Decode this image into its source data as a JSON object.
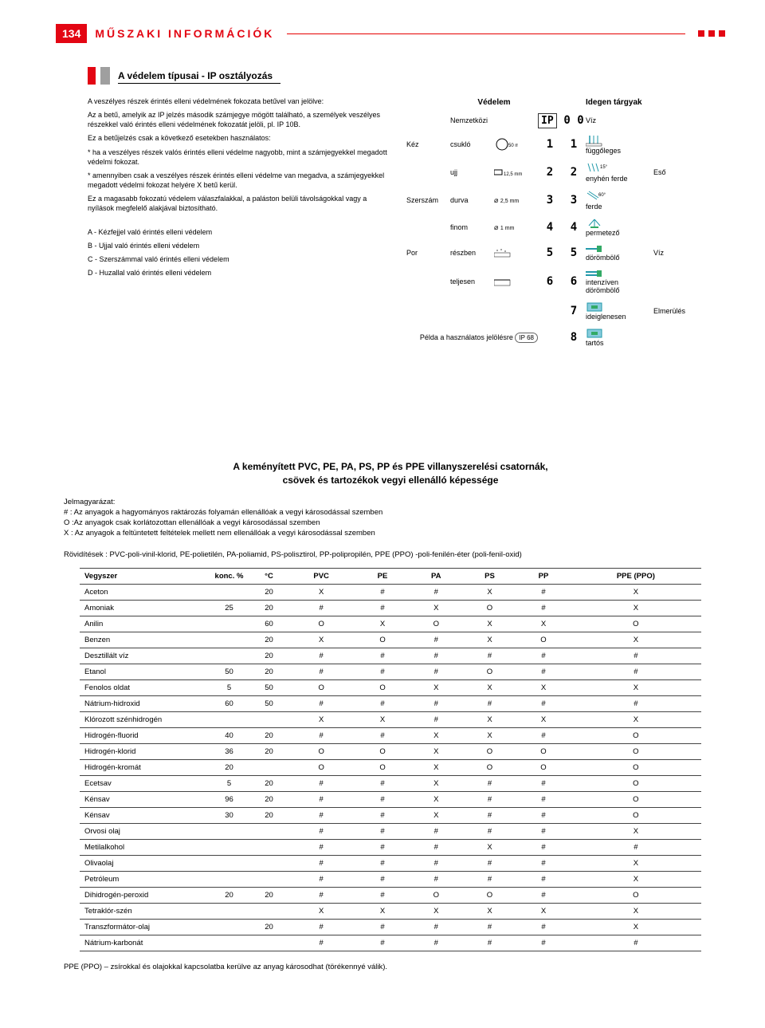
{
  "page_number": "134",
  "top_title": "MŰSZAKI INFORMÁCIÓK",
  "section_a": {
    "title": "A védelem típusai - IP osztályozás",
    "p1": "A veszélyes részek érintés elleni védelmének fokozata betűvel van jelölve:",
    "p2": "Az a betű, amelyik az IP jelzés második számjegye mögött található, a személyek veszélyes részekkel való érintés elleni védelmének fokozatát jelöli, pl. IP 10B.",
    "p3": "Ez a betűjelzés csak a következő esetekben használatos:",
    "p4": "* ha a veszélyes részek valós érintés elleni védelme nagyobb, mint a számjegyekkel megadott védelmi fokozat.",
    "p5": "* amennyiben csak a veszélyes részek érintés elleni védelme van megadva, a számjegyekkel megadott védelmi fokozat helyére X betű kerül.",
    "p6": "Ez a magasabb fokozatú védelem válaszfalakkal, a paláston belüli távolságokkal vagy a nyílások megfelelő alakjával biztosítható.",
    "la": "A - Kézfejjel való érintés elleni védelem",
    "lb": "B - Ujjal való érintés elleni védelem",
    "lc": "C - Szerszámmal való érintés elleni védelem",
    "ld": "D - Huzallal való érintés elleni védelem",
    "hdr_vedelem": "Védelem",
    "hdr_idegen": "Idegen tárgyak",
    "nemzetkozi": "Nemzetközi",
    "viz": "Víz",
    "kez": "Kéz",
    "szerszam": "Szerszám",
    "por": "Por",
    "csuklo": "csukló",
    "ujj": "ujj",
    "durva": "durva",
    "finom": "finom",
    "reszben": "részben",
    "teljesen": "teljesen",
    "ip_label": "IP",
    "d50": "50 mm",
    "d125": "12,5 mm",
    "d25": "2,5 mm",
    "d1": "1 mm",
    "ang15": "15°",
    "ang60": "60°",
    "fuggoleges": "függőleges",
    "enyhen": "enyhén ferde",
    "ferde": "ferde",
    "permet": "permetező",
    "dorombolo": "dörömbölő",
    "intenziv": "intenzíven dörömbölő",
    "ideig": "ideiglenesen",
    "tartos": "tartós",
    "eso": "Eső",
    "viz2": "Víz",
    "elmerules": "Elmerülés",
    "example_label": "Példa a használatos jelölésre",
    "example_ip": "IP 68"
  },
  "section_b": {
    "title1": "A keményített PVC, PE, PA, PS, PP és PPE villanyszerelési csatornák,",
    "title2": "csövek és tartozékok vegyi ellenálló képessége",
    "legend_h": "Jelmagyarázat:",
    "legend_hash": "# : Az anyagok a hagyományos raktározás folyamán ellenállóak a vegyi károsodással szemben",
    "legend_o": "O :Az anyagok csak korlátozottan ellenállóak a vegyi károsodással szemben",
    "legend_x": "X : Az anyagok a feltüntetett feltételek mellett nem ellenállóak a vegyi károsodással szemben",
    "abbrev": "Rövidítések : PVC-poli-vinil-klorid, PE-polietilén, PA-poliamid, PS-polisztirol, PP-polipropilén, PPE (PPO) -poli-fenilén-éter (poli-fenil-oxid)",
    "headers": [
      "Vegyszer",
      "konc. %",
      "°C",
      "PVC",
      "PE",
      "PA",
      "PS",
      "PP",
      "PPE (PPO)"
    ],
    "rows": [
      [
        "Aceton",
        "",
        "20",
        "X",
        "#",
        "#",
        "X",
        "#",
        "X"
      ],
      [
        "Amoniak",
        "25",
        "20",
        "#",
        "#",
        "X",
        "O",
        "#",
        "X"
      ],
      [
        "Anilin",
        "",
        "60",
        "O",
        "X",
        "O",
        "X",
        "X",
        "O"
      ],
      [
        "Benzen",
        "",
        "20",
        "X",
        "O",
        "#",
        "X",
        "O",
        "X"
      ],
      [
        "Desztillált víz",
        "",
        "20",
        "#",
        "#",
        "#",
        "#",
        "#",
        "#"
      ],
      [
        "Etanol",
        "50",
        "20",
        "#",
        "#",
        "#",
        "O",
        "#",
        "#"
      ],
      [
        "Fenolos oldat",
        "5",
        "50",
        "O",
        "O",
        "X",
        "X",
        "X",
        "X"
      ],
      [
        "Nátrium-hidroxid",
        "60",
        "50",
        "#",
        "#",
        "#",
        "#",
        "#",
        "#"
      ],
      [
        "Klórozott szénhidrogén",
        "",
        "",
        "X",
        "X",
        "#",
        "X",
        "X",
        "X"
      ],
      [
        "Hidrogén-fluorid",
        "40",
        "20",
        "#",
        "#",
        "X",
        "X",
        "#",
        "O"
      ],
      [
        "Hidrogén-klorid",
        "36",
        "20",
        "O",
        "O",
        "X",
        "O",
        "O",
        "O"
      ],
      [
        "Hidrogén-kromát",
        "20",
        "",
        "O",
        "O",
        "X",
        "O",
        "O",
        "O"
      ],
      [
        "Ecetsav",
        "5",
        "20",
        "#",
        "#",
        "X",
        "#",
        "#",
        "O"
      ],
      [
        "Kénsav",
        "96",
        "20",
        "#",
        "#",
        "X",
        "#",
        "#",
        "O"
      ],
      [
        "Kénsav",
        "30",
        "20",
        "#",
        "#",
        "X",
        "#",
        "#",
        "O"
      ],
      [
        "Orvosi olaj",
        "",
        "",
        "#",
        "#",
        "#",
        "#",
        "#",
        "X"
      ],
      [
        "Metilalkohol",
        "",
        "",
        "#",
        "#",
        "#",
        "X",
        "#",
        "#"
      ],
      [
        "Olivaolaj",
        "",
        "",
        "#",
        "#",
        "#",
        "#",
        "#",
        "X"
      ],
      [
        "Petróleum",
        "",
        "",
        "#",
        "#",
        "#",
        "#",
        "#",
        "X"
      ],
      [
        "Dihidrogén-peroxid",
        "20",
        "20",
        "#",
        "#",
        "O",
        "O",
        "#",
        "O"
      ],
      [
        "Tetraklór-szén",
        "",
        "",
        "X",
        "X",
        "X",
        "X",
        "X",
        "X"
      ],
      [
        "Transzformátor-olaj",
        "",
        "20",
        "#",
        "#",
        "#",
        "#",
        "#",
        "X"
      ],
      [
        "Nátrium-karbonát",
        "",
        "",
        "#",
        "#",
        "#",
        "#",
        "#",
        "#"
      ]
    ],
    "bottom_note": "PPE (PPO) – zsírokkal és olajokkal kapcsolatba kerülve az anyag károsodhat (törékennyé válik)."
  }
}
